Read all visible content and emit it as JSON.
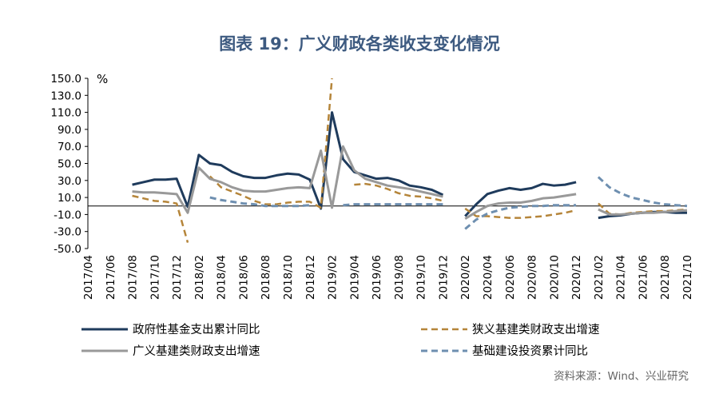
{
  "chart_data": {
    "type": "line",
    "title": "图表 19：广义财政各类收支变化情况",
    "unit": "%",
    "source": "资料来源：Wind、兴业研究",
    "ylim": [
      -50,
      150
    ],
    "yticks": [
      "150.0",
      "130.0",
      "110.0",
      "90.0",
      "70.0",
      "50.0",
      "30.0",
      "10.0",
      "-10.0",
      "-30.0",
      "-50.0"
    ],
    "ytick_values": [
      150,
      130,
      110,
      90,
      70,
      50,
      30,
      10,
      -10,
      -30,
      -50
    ],
    "x": [
      "2017/04",
      "2017/05",
      "2017/06",
      "2017/07",
      "2017/08",
      "2017/09",
      "2017/10",
      "2017/11",
      "2017/12",
      "2018/01",
      "2018/02",
      "2018/03",
      "2018/04",
      "2018/05",
      "2018/06",
      "2018/07",
      "2018/08",
      "2018/09",
      "2018/10",
      "2018/11",
      "2018/12",
      "2019/01",
      "2019/02",
      "2019/03",
      "2019/04",
      "2019/05",
      "2019/06",
      "2019/07",
      "2019/08",
      "2019/09",
      "2019/10",
      "2019/11",
      "2019/12",
      "2020/01",
      "2020/02",
      "2020/03",
      "2020/04",
      "2020/05",
      "2020/06",
      "2020/07",
      "2020/08",
      "2020/09",
      "2020/10",
      "2020/11",
      "2020/12",
      "2021/01",
      "2021/02",
      "2021/03",
      "2021/04",
      "2021/05",
      "2021/06",
      "2021/07",
      "2021/08",
      "2021/09",
      "2021/10"
    ],
    "xtick_labels": [
      "2017/04",
      "2017/06",
      "2017/08",
      "2017/10",
      "2017/12",
      "2018/02",
      "2018/04",
      "2018/06",
      "2018/08",
      "2018/10",
      "2018/12",
      "2019/02",
      "2019/04",
      "2019/06",
      "2019/08",
      "2019/10",
      "2019/12",
      "2020/02",
      "2020/04",
      "2020/06",
      "2020/08",
      "2020/10",
      "2020/12",
      "2021/02",
      "2021/04",
      "2021/06",
      "2021/08",
      "2021/10"
    ],
    "legend_position": "bottom",
    "series": [
      {
        "name": "政府性基金支出累计同比",
        "color": "#1f3b5c",
        "style": "solid",
        "width": 3,
        "values": [
          null,
          null,
          null,
          null,
          25,
          28,
          31,
          31,
          32,
          -1,
          60,
          50,
          48,
          40,
          35,
          33,
          33,
          36,
          38,
          37,
          31,
          -3,
          110,
          55,
          40,
          36,
          32,
          33,
          30,
          24,
          22,
          19,
          13,
          null,
          -12,
          2,
          14,
          18,
          21,
          19,
          21,
          26,
          24,
          25,
          28,
          null,
          -14,
          -12,
          -11,
          -9,
          -8,
          -7,
          -7,
          -8,
          -8
        ]
      },
      {
        "name": "狭义基建类财政支出增速",
        "color": "#b5853a",
        "style": "dash",
        "width": 2.5,
        "values": [
          null,
          null,
          null,
          null,
          12,
          9,
          6,
          5,
          3,
          -43,
          null,
          35,
          22,
          17,
          12,
          6,
          2,
          2,
          4,
          5,
          5,
          -2,
          150,
          null,
          25,
          26,
          24,
          20,
          15,
          12,
          11,
          9,
          6,
          null,
          -3,
          -12,
          -12,
          -13,
          -14,
          -14,
          -13,
          -12,
          -10,
          -8,
          -5,
          null,
          3,
          -9,
          -10,
          -8,
          -7,
          -6,
          -6,
          -5,
          -4
        ]
      },
      {
        "name": "广义基建类财政支出增速",
        "color": "#999999",
        "style": "solid",
        "width": 3,
        "values": [
          null,
          null,
          null,
          null,
          17,
          16,
          16,
          15,
          14,
          -8,
          45,
          32,
          28,
          22,
          18,
          17,
          17,
          19,
          21,
          22,
          21,
          65,
          -2,
          70,
          42,
          32,
          28,
          24,
          22,
          20,
          17,
          14,
          11,
          null,
          -15,
          -7,
          0,
          3,
          4,
          4,
          6,
          9,
          10,
          12,
          14,
          null,
          -4,
          -10,
          -10,
          -9,
          -8,
          -8,
          -7,
          -6,
          -5
        ]
      },
      {
        "name": "基础建设投资累计同比",
        "color": "#6e8fb0",
        "style": "dash",
        "width": 3,
        "values": [
          null,
          null,
          null,
          null,
          null,
          null,
          null,
          null,
          null,
          null,
          null,
          10,
          7,
          5,
          3,
          2,
          0,
          0,
          0,
          0,
          1,
          null,
          null,
          1,
          2,
          2,
          2,
          2,
          2,
          2,
          2,
          2,
          2,
          null,
          -27,
          -16,
          -9,
          -5,
          -2,
          -1,
          0,
          0,
          1,
          1,
          1,
          null,
          34,
          22,
          15,
          10,
          7,
          4,
          2,
          1,
          0
        ]
      }
    ]
  }
}
